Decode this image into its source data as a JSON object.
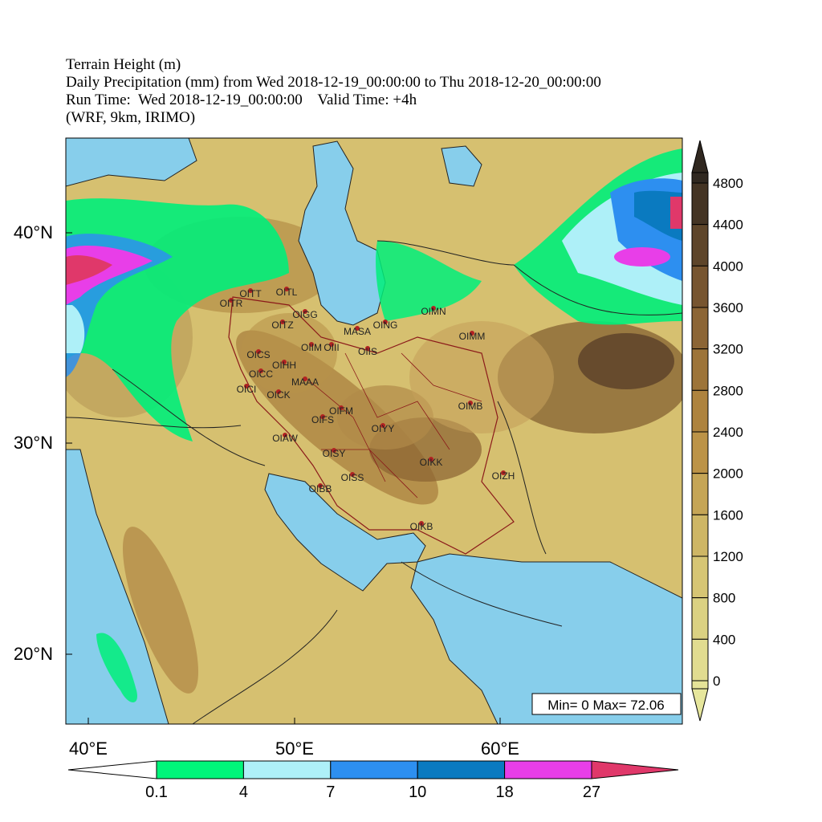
{
  "title": {
    "lines": [
      "Terrain Height (m)",
      "Daily Precipitation (mm) from Wed 2018-12-19_00:00:00 to Thu 2018-12-20_00:00:00",
      "Run Time:  Wed 2018-12-19_00:00:00    Valid Time: +4h",
      "(WRF, 9km, IRIMO)"
    ]
  },
  "map": {
    "lat_labels": [
      "40°N",
      "30°N",
      "20°N"
    ],
    "lon_labels": [
      "40°E",
      "50°E",
      "60°E"
    ],
    "stations": [
      "OITR",
      "OITT",
      "OITL",
      "OIGG",
      "OITZ",
      "MASA",
      "OING",
      "OIMN",
      "OIMM",
      "OIIS",
      "OIIM",
      "OIII",
      "OICS",
      "OIHH",
      "OICC",
      "OICI",
      "OICK",
      "MAAA",
      "OIFM",
      "OIFS",
      "OIYY",
      "OIMB",
      "OIAW",
      "OISY",
      "OIKK",
      "OISS",
      "OIZH",
      "OIBB",
      "OIKB"
    ],
    "stats": "Min= 0 Max= 72.06"
  },
  "terrain_colorbar": {
    "labels": [
      4800,
      4400,
      4000,
      3600,
      3200,
      2800,
      2400,
      2000,
      1600,
      1200,
      800,
      400,
      0
    ]
  },
  "precip_colorbar": {
    "labels": [
      0.1,
      4,
      7,
      10,
      18,
      27
    ]
  }
}
